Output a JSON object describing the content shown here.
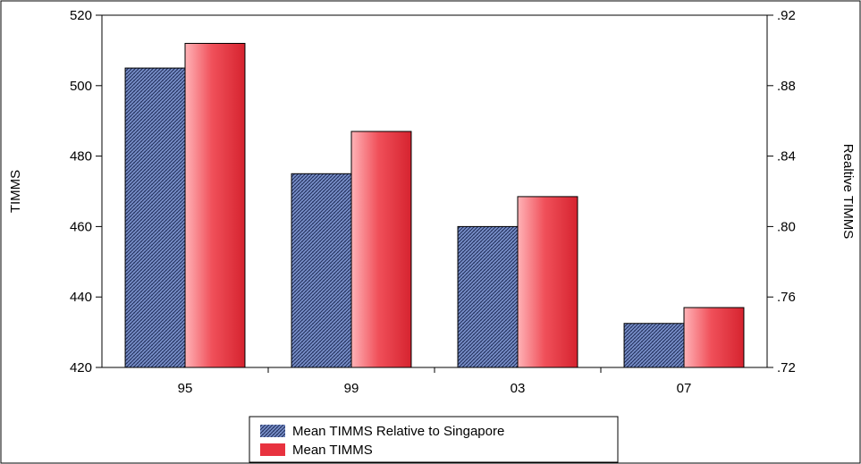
{
  "chart_data": {
    "type": "bar",
    "categories": [
      "95",
      "99",
      "03",
      "07"
    ],
    "series": [
      {
        "name": "Mean TIMMS Relative to Singapore",
        "axis": "right",
        "values": [
          0.89,
          0.83,
          0.8,
          0.745
        ],
        "color": "#6f87c4",
        "pattern": "crosshatch"
      },
      {
        "name": "Mean TIMMS",
        "axis": "left",
        "values": [
          512,
          487,
          468.5,
          437
        ],
        "color": "#e8323f"
      }
    ],
    "ylabel": "TIMMS",
    "y2label": "Realtive TIMMS",
    "ylim": [
      420,
      520
    ],
    "y2lim": [
      0.72,
      0.92
    ],
    "yticks": [
      "420",
      "440",
      "460",
      "480",
      "500",
      "520"
    ],
    "y2ticks": [
      ".72",
      ".76",
      ".80",
      ".84",
      ".88",
      ".92"
    ],
    "grid": false,
    "legend_position": "bottom-center"
  }
}
